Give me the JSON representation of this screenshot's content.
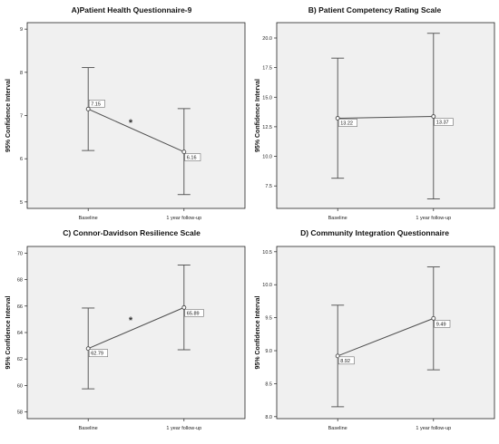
{
  "chart_data": [
    {
      "type": "errorbar-line",
      "title": "A)Patient Health Questionnaire-9",
      "xlabel": "",
      "ylabel": "95% Confidence Interval",
      "categories": [
        "Baseline",
        "1 year follow-up"
      ],
      "means": [
        7.15,
        6.16
      ],
      "lower": [
        6.19,
        5.17
      ],
      "upper": [
        8.11,
        7.16
      ],
      "labels": [
        "7.15",
        "6.16"
      ],
      "ylim": [
        4.85,
        9.15
      ],
      "yticks": [
        5,
        6,
        7,
        8,
        9
      ],
      "ytick_labels": [
        "5",
        "6",
        "7",
        "8",
        "9"
      ],
      "annotation": "*",
      "grid": false
    },
    {
      "type": "errorbar-line",
      "title": "B) Patient Competency Rating Scale",
      "xlabel": "",
      "ylabel": "95% Confidence Interval",
      "categories": [
        "Baseline",
        "1 year follow-up"
      ],
      "means": [
        13.22,
        13.37
      ],
      "lower": [
        8.15,
        6.4
      ],
      "upper": [
        18.3,
        20.4
      ],
      "labels": [
        "13.22",
        "13.37"
      ],
      "ylim": [
        5.6,
        21.3
      ],
      "yticks": [
        7.5,
        10.0,
        12.5,
        15.0,
        17.5,
        20.0
      ],
      "ytick_labels": [
        "7.5",
        "10.0",
        "12.5",
        "15.0",
        "17.5",
        "20.0"
      ],
      "annotation": "",
      "grid": false
    },
    {
      "type": "errorbar-line",
      "title": "C) Connor-Davidson Resilience Scale",
      "xlabel": "",
      "ylabel": "95% Confidence Interval",
      "categories": [
        "Baseline",
        "1 year follow-up"
      ],
      "means": [
        62.79,
        65.89
      ],
      "lower": [
        59.75,
        62.7
      ],
      "upper": [
        65.85,
        69.1
      ],
      "labels": [
        "62.79",
        "65.89"
      ],
      "ylim": [
        57.5,
        70.5
      ],
      "yticks": [
        58,
        60,
        62,
        64,
        66,
        68,
        70
      ],
      "ytick_labels": [
        "58",
        "60",
        "62",
        "64",
        "66",
        "68",
        "70"
      ],
      "annotation": "*",
      "grid": false
    },
    {
      "type": "errorbar-line",
      "title": "D) Community Integration Questionnaire",
      "xlabel": "",
      "ylabel": "95% Confidence Interval",
      "categories": [
        "Baseline",
        "1 year follow-up"
      ],
      "means": [
        8.92,
        9.49
      ],
      "lower": [
        8.15,
        8.71
      ],
      "upper": [
        9.69,
        10.27
      ],
      "labels": [
        "8.92",
        "9.49"
      ],
      "ylim": [
        7.97,
        10.58
      ],
      "yticks": [
        8.0,
        8.5,
        9.0,
        9.5,
        10.0,
        10.5
      ],
      "ytick_labels": [
        "8.0",
        "8.5",
        "9.0",
        "9.5",
        "10.0",
        "10.5"
      ],
      "annotation": "",
      "grid": false
    }
  ]
}
